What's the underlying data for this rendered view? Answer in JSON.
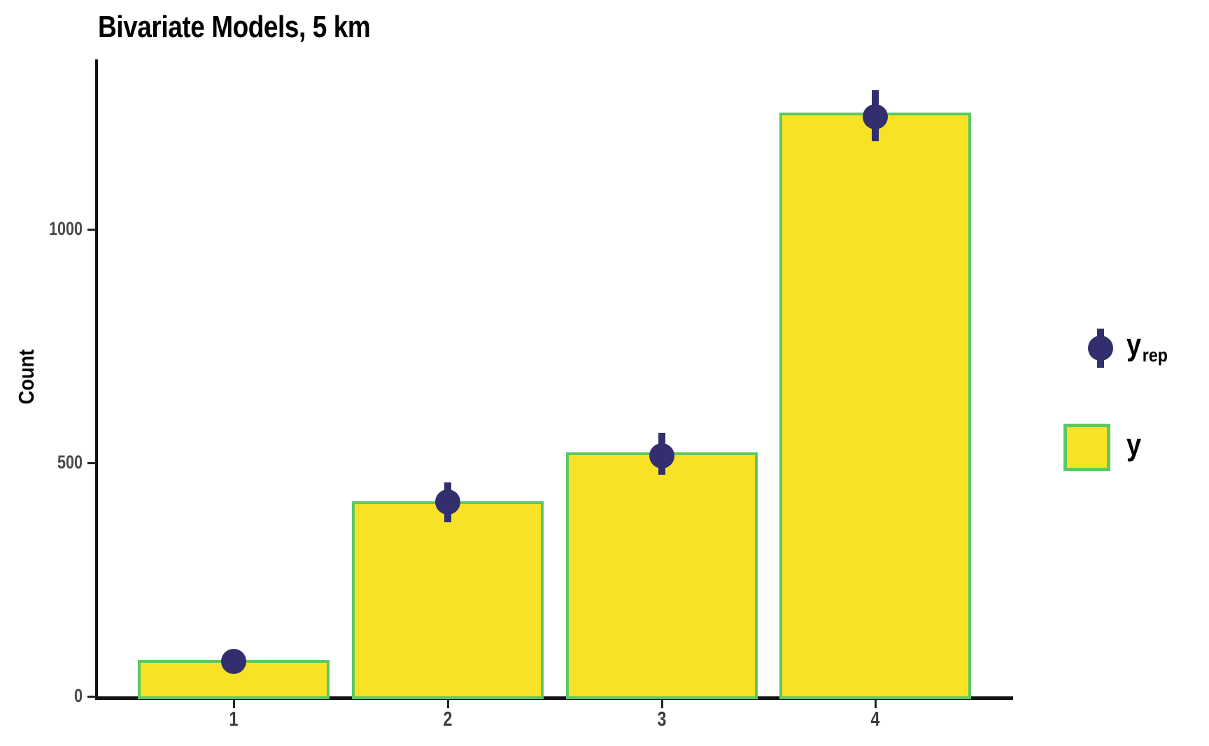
{
  "chart_data": {
    "type": "bar",
    "title": "Bivariate Models, 5 km",
    "xlabel": "",
    "ylabel": "Count",
    "categories": [
      "1",
      "2",
      "3",
      "4"
    ],
    "series": [
      {
        "name": "y",
        "kind": "bar",
        "values": [
          78,
          417,
          522,
          1250
        ]
      },
      {
        "name": "y_rep",
        "kind": "point-interval",
        "values": [
          75,
          416,
          515,
          1241
        ],
        "lower": [
          60,
          373,
          474,
          1189
        ],
        "upper": [
          90,
          458,
          565,
          1298
        ]
      }
    ],
    "ylim": [
      0,
      1365
    ],
    "yticks": [
      0,
      500,
      1000
    ],
    "grid": false,
    "legend_position": "right-outside"
  },
  "legend": {
    "yrep_label_main": "y",
    "yrep_label_sub": "rep",
    "y_label": "y"
  },
  "colors": {
    "bar_fill": "#F7E225",
    "bar_border": "#5CC863",
    "point": "#332F6F",
    "axis": "#111111",
    "tick_label": "#4a4a4a",
    "title_text": "#000000"
  }
}
